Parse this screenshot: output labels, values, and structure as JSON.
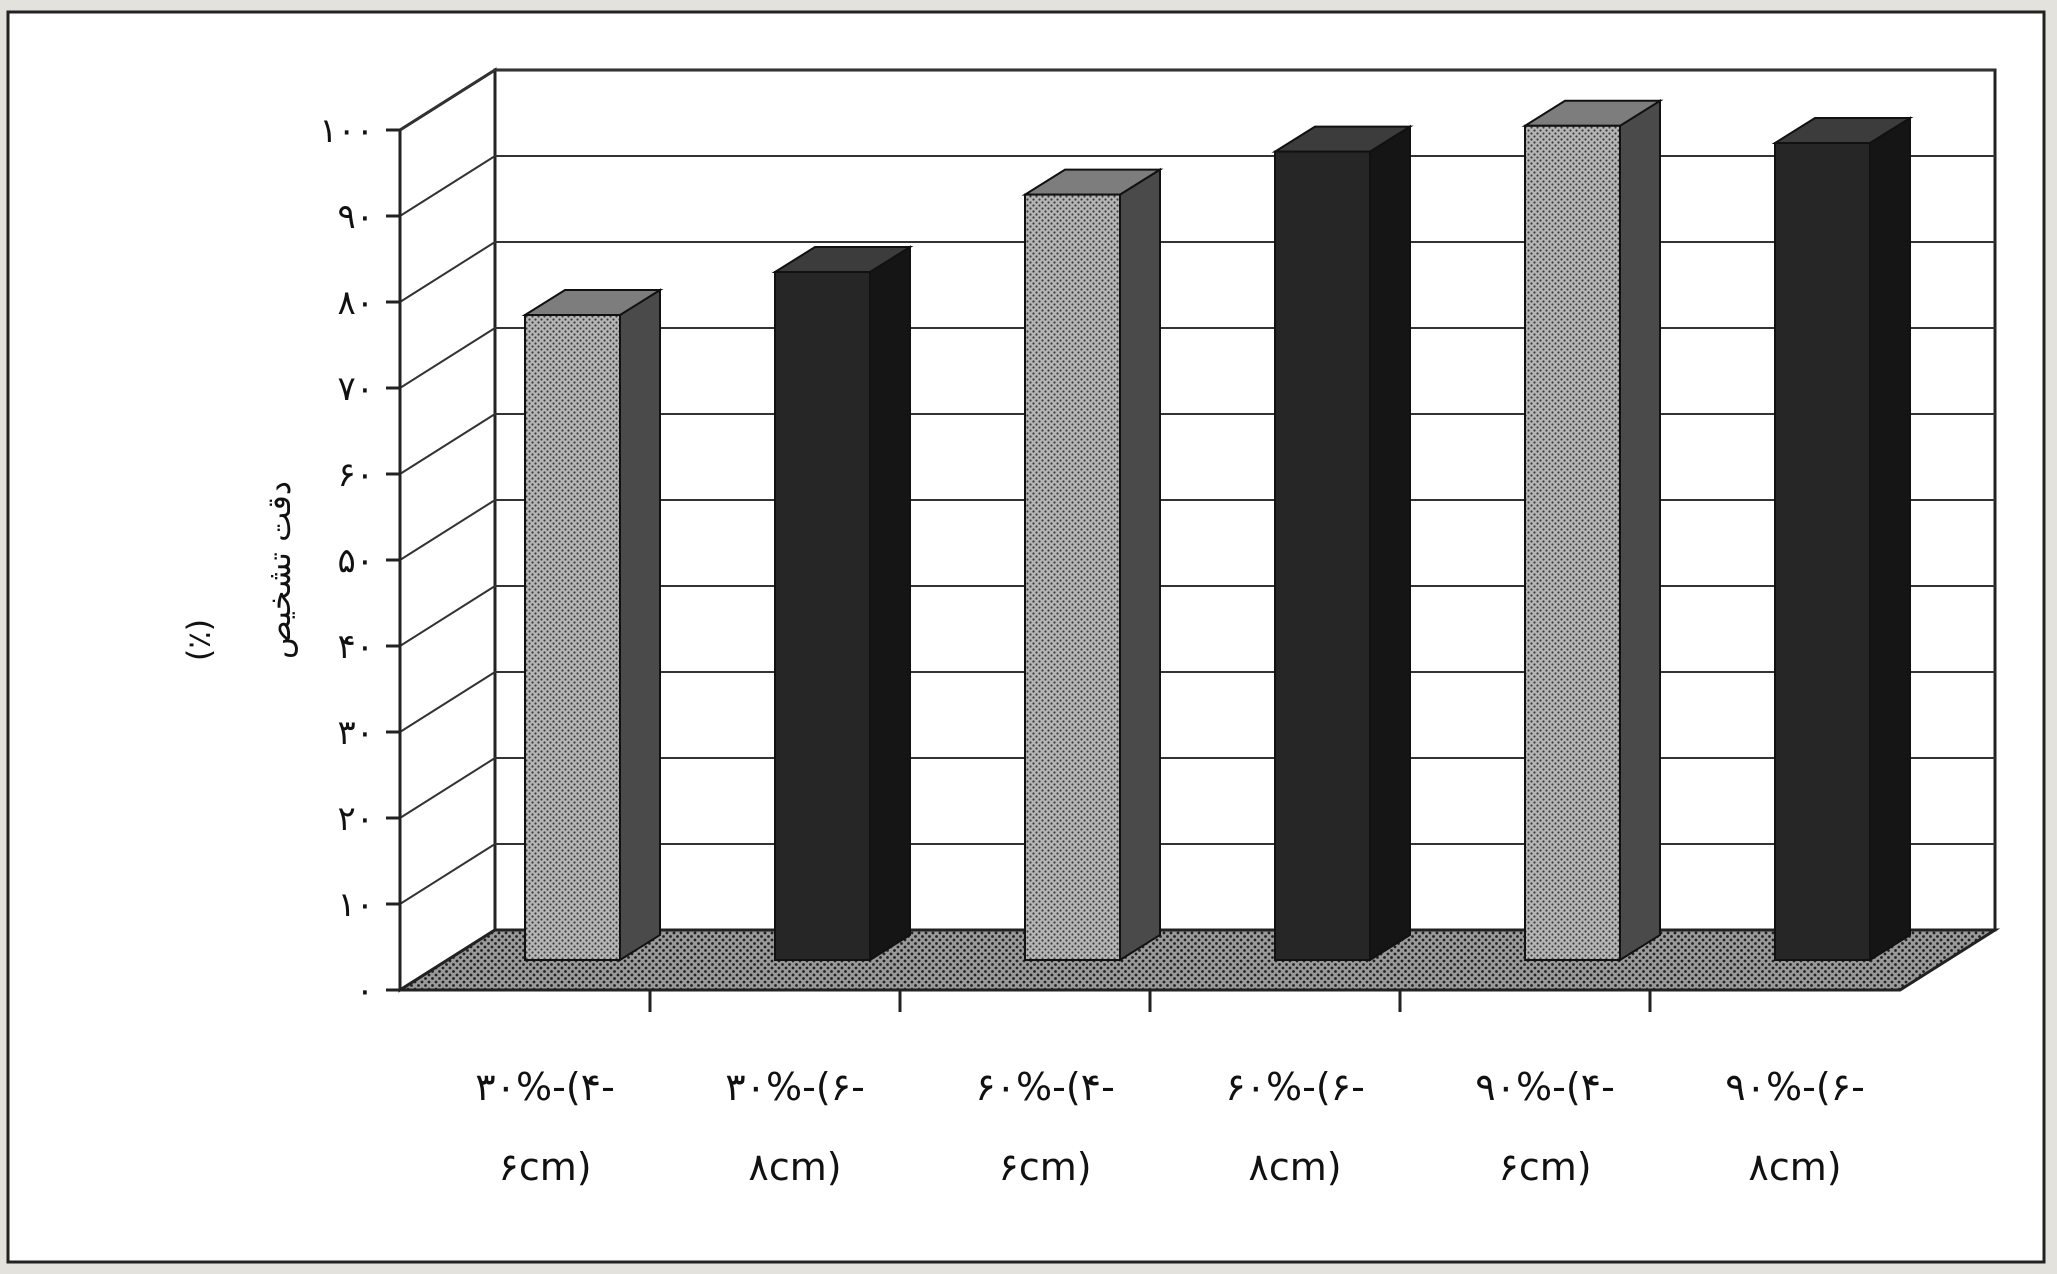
{
  "chart_data": {
    "type": "bar",
    "categories": [
      {
        "line1": "۳۰%-(۴-",
        "line2": "۶cm)"
      },
      {
        "line1": "۳۰%-(۶-",
        "line2": "۸cm)"
      },
      {
        "line1": "۶۰%-(۴-",
        "line2": "۶cm)"
      },
      {
        "line1": "۶۰%-(۶-",
        "line2": "۸cm)"
      },
      {
        "line1": "۹۰%-(۴-",
        "line2": "۶cm)"
      },
      {
        "line1": "۹۰%-(۶-",
        "line2": "۸cm)"
      }
    ],
    "values": [
      75,
      80,
      89,
      94,
      97,
      95
    ],
    "bar_styles": [
      "light",
      "dark",
      "light",
      "dark",
      "light",
      "dark"
    ],
    "ylabel": "دقت تشخیص",
    "ylabel_unit": "(٪)",
    "ylim": [
      0,
      100
    ],
    "yticks": [
      {
        "value": 0,
        "label": "۰"
      },
      {
        "value": 10,
        "label": "۱۰"
      },
      {
        "value": 20,
        "label": "۲۰"
      },
      {
        "value": 30,
        "label": "۳۰"
      },
      {
        "value": 40,
        "label": "۴۰"
      },
      {
        "value": 50,
        "label": "۵۰"
      },
      {
        "value": 60,
        "label": "۶۰"
      },
      {
        "value": 70,
        "label": "۷۰"
      },
      {
        "value": 80,
        "label": "۸۰"
      },
      {
        "value": 90,
        "label": "۹۰"
      },
      {
        "value": 100,
        "label": "۱۰۰"
      }
    ],
    "grid": true,
    "legend": "none",
    "colors": {
      "light": "#a9a9a9",
      "dark": "#262626",
      "floor": "#8f8f8f",
      "background": "#ffffff"
    }
  }
}
